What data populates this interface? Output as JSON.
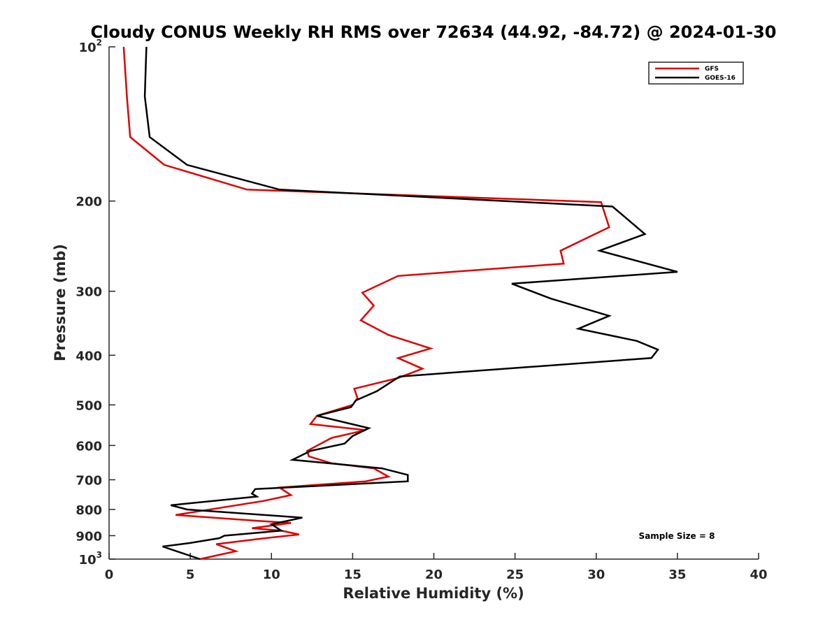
{
  "chart_data": {
    "type": "line",
    "title": "Cloudy CONUS Weekly RH RMS over 72634 (44.92, -84.72) @ 2024-01-30",
    "xlabel": "Relative Humidity (%)",
    "ylabel": "Pressure (mb)",
    "xlim": [
      0,
      40
    ],
    "ylim": [
      100,
      1000
    ],
    "yscale": "log",
    "y_reversed": true,
    "grid": false,
    "legend_position": "top-right",
    "x_ticks": [
      0,
      5,
      10,
      15,
      20,
      25,
      30,
      35,
      40
    ],
    "x_tick_labels": [
      "0",
      "5",
      "10",
      "15",
      "20",
      "25",
      "30",
      "35",
      "40"
    ],
    "y_ticks": [
      100,
      200,
      300,
      400,
      500,
      600,
      700,
      800,
      900,
      1000
    ],
    "y_tick_labels": [
      {
        "base": "10",
        "sup": "2"
      },
      {
        "base": "200",
        "sup": ""
      },
      {
        "base": "300",
        "sup": ""
      },
      {
        "base": "400",
        "sup": ""
      },
      {
        "base": "500",
        "sup": ""
      },
      {
        "base": "600",
        "sup": ""
      },
      {
        "base": "700",
        "sup": ""
      },
      {
        "base": "800",
        "sup": ""
      },
      {
        "base": "900",
        "sup": ""
      },
      {
        "base": "10",
        "sup": "3"
      }
    ],
    "annotation": "Sample Size = 8",
    "series": [
      {
        "name": "GFS",
        "color": "#e00000",
        "points": [
          [
            0.9,
            100
          ],
          [
            1.1,
            125
          ],
          [
            1.3,
            150
          ],
          [
            3.4,
            170
          ],
          [
            8.5,
            190
          ],
          [
            30.3,
            201
          ],
          [
            30.8,
            225
          ],
          [
            27.8,
            250
          ],
          [
            28.0,
            265
          ],
          [
            17.8,
            280
          ],
          [
            15.6,
            302
          ],
          [
            16.3,
            320
          ],
          [
            15.5,
            342
          ],
          [
            17.2,
            365
          ],
          [
            19.8,
            388
          ],
          [
            17.8,
            405
          ],
          [
            19.3,
            425
          ],
          [
            17.8,
            443
          ],
          [
            15.1,
            465
          ],
          [
            15.3,
            485
          ],
          [
            15.0,
            500
          ],
          [
            12.8,
            525
          ],
          [
            12.4,
            545
          ],
          [
            15.8,
            560
          ],
          [
            13.7,
            580
          ],
          [
            12.2,
            615
          ],
          [
            12.3,
            630
          ],
          [
            13.7,
            650
          ],
          [
            16.3,
            665
          ],
          [
            17.2,
            690
          ],
          [
            15.8,
            705
          ],
          [
            10.5,
            725
          ],
          [
            11.2,
            750
          ],
          [
            9.5,
            770
          ],
          [
            4.1,
            820
          ],
          [
            8.7,
            840
          ],
          [
            11.2,
            850
          ],
          [
            8.8,
            870
          ],
          [
            10.6,
            880
          ],
          [
            11.7,
            895
          ],
          [
            9.0,
            915
          ],
          [
            6.6,
            935
          ],
          [
            7.8,
            965
          ],
          [
            5.6,
            1000
          ]
        ]
      },
      {
        "name": "GOES-16",
        "color": "#000000",
        "points": [
          [
            2.3,
            100
          ],
          [
            2.2,
            125
          ],
          [
            2.5,
            150
          ],
          [
            4.8,
            170
          ],
          [
            10.5,
            190
          ],
          [
            31.0,
            205
          ],
          [
            33.0,
            232
          ],
          [
            30.2,
            250
          ],
          [
            35.0,
            275
          ],
          [
            24.8,
            290
          ],
          [
            27.2,
            310
          ],
          [
            30.8,
            335
          ],
          [
            28.9,
            355
          ],
          [
            32.5,
            375
          ],
          [
            33.8,
            390
          ],
          [
            33.4,
            405
          ],
          [
            17.9,
            440
          ],
          [
            16.5,
            470
          ],
          [
            15.2,
            490
          ],
          [
            14.9,
            505
          ],
          [
            12.8,
            525
          ],
          [
            16.0,
            555
          ],
          [
            15.0,
            575
          ],
          [
            14.5,
            595
          ],
          [
            12.4,
            615
          ],
          [
            11.3,
            640
          ],
          [
            16.8,
            665
          ],
          [
            18.4,
            685
          ],
          [
            18.4,
            705
          ],
          [
            9.0,
            730
          ],
          [
            8.8,
            745
          ],
          [
            9.1,
            755
          ],
          [
            3.8,
            785
          ],
          [
            4.8,
            800
          ],
          [
            11.9,
            830
          ],
          [
            10.0,
            855
          ],
          [
            10.6,
            880
          ],
          [
            7.1,
            900
          ],
          [
            6.8,
            910
          ],
          [
            5.0,
            930
          ],
          [
            3.3,
            945
          ],
          [
            5.6,
            1000
          ]
        ]
      }
    ]
  }
}
